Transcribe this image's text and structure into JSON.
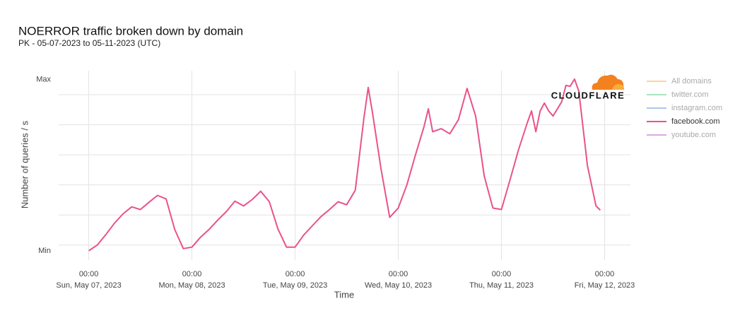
{
  "chart_data": {
    "type": "line",
    "title": "NOERROR traffic broken down by domain",
    "subtitle": "PK - 05-07-2023 to 05-11-2023 (UTC)",
    "y_label": "Number of queries / s",
    "x_label": "Time",
    "logo": "CLOUDFLARE",
    "x": [
      "2023-05-07T00:00",
      "2023-05-07T02:00",
      "2023-05-07T04:00",
      "2023-05-07T06:00",
      "2023-05-07T08:00",
      "2023-05-07T10:00",
      "2023-05-07T12:00",
      "2023-05-07T14:00",
      "2023-05-07T16:00",
      "2023-05-07T18:00",
      "2023-05-07T20:00",
      "2023-05-07T22:00",
      "2023-05-08T00:00",
      "2023-05-08T02:00",
      "2023-05-08T04:00",
      "2023-05-08T06:00",
      "2023-05-08T08:00",
      "2023-05-08T10:00",
      "2023-05-08T12:00",
      "2023-05-08T14:00",
      "2023-05-08T16:00",
      "2023-05-08T18:00",
      "2023-05-08T20:00",
      "2023-05-08T22:00",
      "2023-05-09T00:00",
      "2023-05-09T02:00",
      "2023-05-09T04:00",
      "2023-05-09T06:00",
      "2023-05-09T08:00",
      "2023-05-09T10:00",
      "2023-05-09T12:00",
      "2023-05-09T14:00",
      "2023-05-09T16:00",
      "2023-05-09T17:00",
      "2023-05-09T18:00",
      "2023-05-09T20:00",
      "2023-05-09T22:00",
      "2023-05-10T00:00",
      "2023-05-10T02:00",
      "2023-05-10T04:00",
      "2023-05-10T06:00",
      "2023-05-10T07:00",
      "2023-05-10T08:00",
      "2023-05-10T10:00",
      "2023-05-10T12:00",
      "2023-05-10T14:00",
      "2023-05-10T16:00",
      "2023-05-10T18:00",
      "2023-05-10T20:00",
      "2023-05-10T22:00",
      "2023-05-11T00:00",
      "2023-05-11T02:00",
      "2023-05-11T04:00",
      "2023-05-11T06:00",
      "2023-05-11T07:00",
      "2023-05-11T08:00",
      "2023-05-11T09:00",
      "2023-05-11T10:00",
      "2023-05-11T11:00",
      "2023-05-11T12:00",
      "2023-05-11T14:00",
      "2023-05-11T15:00",
      "2023-05-11T16:00",
      "2023-05-11T17:00",
      "2023-05-11T18:00",
      "2023-05-11T20:00",
      "2023-05-11T22:00",
      "2023-05-11T23:00"
    ],
    "series": [
      {
        "name": "All domains",
        "color": "#f6d79e",
        "visible": false
      },
      {
        "name": "twitter.com",
        "color": "#a9e3bd",
        "visible": false
      },
      {
        "name": "instagram.com",
        "color": "#a9c7ef",
        "visible": false
      },
      {
        "name": "facebook.com",
        "color": "#e9528b",
        "visible": true,
        "values": [
          -0.19,
          0,
          0.35,
          0.73,
          1.04,
          1.27,
          1.18,
          1.42,
          1.65,
          1.53,
          0.52,
          -0.12,
          -0.07,
          0.26,
          0.52,
          0.83,
          1.11,
          1.46,
          1.3,
          1.51,
          1.79,
          1.44,
          0.54,
          -0.07,
          -0.07,
          0.33,
          0.64,
          0.94,
          1.18,
          1.44,
          1.34,
          1.82,
          4.22,
          5.24,
          4.41,
          2.52,
          0.92,
          1.23,
          2.0,
          3.0,
          3.94,
          4.53,
          3.77,
          3.87,
          3.7,
          4.17,
          5.21,
          4.29,
          2.29,
          1.23,
          1.18,
          2.17,
          3.18,
          4.06,
          4.46,
          3.77,
          4.46,
          4.72,
          4.46,
          4.29,
          4.76,
          5.31,
          5.28,
          5.52,
          5.12,
          2.64,
          1.3,
          1.16
        ]
      },
      {
        "name": "youtube.com",
        "color": "#dca7e7",
        "visible": false
      }
    ],
    "xlim": [
      "2023-05-06T17:00",
      "2023-05-12T06:00"
    ],
    "xticks": [
      {
        "value": "2023-05-07T00:00",
        "time": "00:00",
        "date": "Sun, May 07, 2023"
      },
      {
        "value": "2023-05-08T00:00",
        "time": "00:00",
        "date": "Mon, May 08, 2023"
      },
      {
        "value": "2023-05-09T00:00",
        "time": "00:00",
        "date": "Tue, May 09, 2023"
      },
      {
        "value": "2023-05-10T00:00",
        "time": "00:00",
        "date": "Wed, May 10, 2023"
      },
      {
        "value": "2023-05-11T00:00",
        "time": "00:00",
        "date": "Thu, May 11, 2023"
      },
      {
        "value": "2023-05-12T00:00",
        "time": "00:00",
        "date": "Fri, May 12, 2023"
      }
    ],
    "ylim": [
      -0.5,
      5.8
    ],
    "yticks": [
      {
        "value": -0.2,
        "label": "Min"
      },
      {
        "value": 5.5,
        "label": "Max"
      }
    ],
    "ygrid": [
      0,
      1,
      2,
      3,
      4,
      5
    ],
    "legend": "right"
  }
}
